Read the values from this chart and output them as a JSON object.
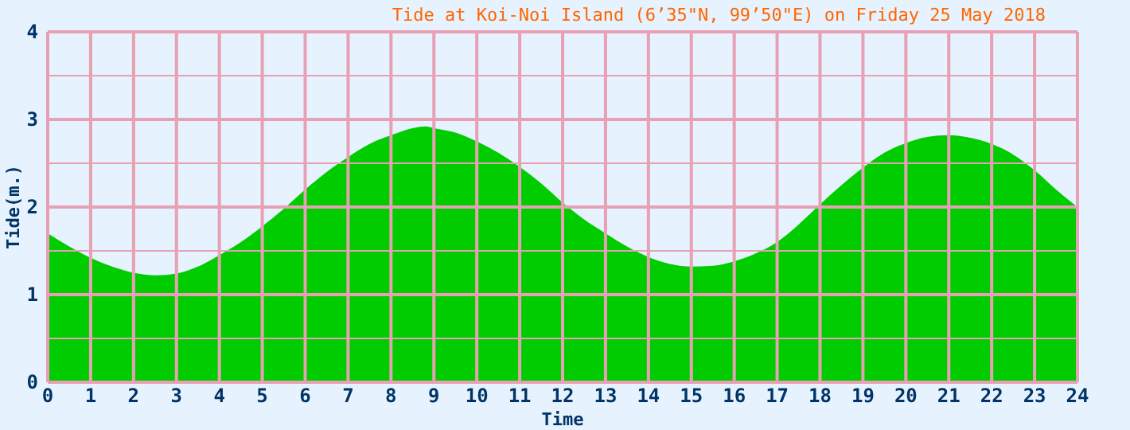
{
  "chart_data": {
    "type": "area",
    "title": "Tide at Koi-Noi Island (6’35\"N, 99’50\"E) on Friday 25 May 2018",
    "xlabel": "Time",
    "ylabel": "Tide(m.)",
    "x": [
      0,
      0.5,
      1,
      1.5,
      2,
      2.5,
      3,
      3.5,
      4,
      4.5,
      5,
      5.5,
      6,
      6.5,
      7,
      7.5,
      8,
      8.5,
      8.8,
      9,
      9.5,
      10,
      10.5,
      11,
      11.5,
      12,
      12.5,
      13,
      13.5,
      14,
      14.5,
      15,
      15.5,
      16,
      16.5,
      17,
      17.5,
      18,
      18.5,
      19,
      19.5,
      20,
      20.5,
      21,
      21.5,
      22,
      22.5,
      23,
      23.5,
      24
    ],
    "series": [
      {
        "color": "#00cc00",
        "values": [
          1.7,
          1.55,
          1.42,
          1.32,
          1.25,
          1.22,
          1.24,
          1.32,
          1.45,
          1.6,
          1.78,
          1.98,
          2.2,
          2.4,
          2.57,
          2.72,
          2.82,
          2.9,
          2.92,
          2.9,
          2.85,
          2.75,
          2.62,
          2.46,
          2.27,
          2.05,
          1.86,
          1.7,
          1.55,
          1.43,
          1.35,
          1.32,
          1.33,
          1.38,
          1.47,
          1.6,
          1.8,
          2.03,
          2.25,
          2.45,
          2.62,
          2.73,
          2.8,
          2.82,
          2.79,
          2.72,
          2.6,
          2.42,
          2.2,
          2.0
        ]
      }
    ],
    "xlim": [
      0,
      24
    ],
    "xticks": [
      0,
      1,
      2,
      3,
      4,
      5,
      6,
      7,
      8,
      9,
      10,
      11,
      12,
      13,
      14,
      15,
      16,
      17,
      18,
      19,
      20,
      21,
      22,
      23,
      24
    ],
    "ylim": [
      0,
      4
    ],
    "yticks": [
      0,
      {
        "value": 0.5,
        "label": null
      },
      1,
      {
        "value": 1.5,
        "label": null
      },
      2,
      {
        "value": 2.5,
        "label": null
      },
      3,
      {
        "value": 3.5,
        "label": null
      },
      4
    ],
    "grid": true
  }
}
